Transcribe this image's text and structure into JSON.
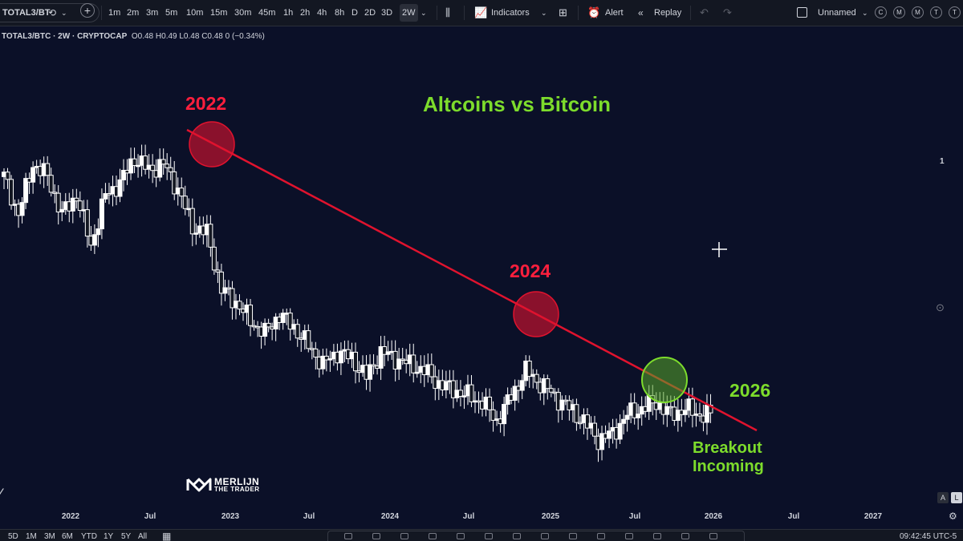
{
  "toolbar": {
    "symbol": "TOTAL3/BT",
    "intervals": [
      "1m",
      "2m",
      "3m",
      "5m",
      "10m",
      "15m",
      "30m",
      "45m",
      "1h",
      "2h",
      "4h",
      "8h",
      "D",
      "2D",
      "3D",
      "2W"
    ],
    "active_interval": "2W",
    "indicators_label": "Indicators",
    "alert_label": "Alert",
    "replay_label": "Replay",
    "layout_name": "Unnamed",
    "layout_shortcuts": [
      "C",
      "M",
      "M",
      "T",
      "T"
    ]
  },
  "legend": {
    "title": "TOTAL3/BTC · 2W · CRYPTOCAP",
    "open": "O0.48",
    "high": "H0.49",
    "low": "L0.48",
    "close": "C0.48",
    "change": "0 (−0.34%)"
  },
  "annotations": {
    "headline": "Altcoins vs Bitcoin",
    "year_2022": "2022",
    "year_2024": "2024",
    "year_2026": "2026",
    "breakout_line1": "Breakout",
    "breakout_line2": "Incoming",
    "price_scale_value": "1",
    "watermark_line1": "MERLIJN",
    "watermark_line2": "THE TRADER",
    "log_toggle": "L",
    "auto_toggle": "A"
  },
  "colors": {
    "background": "#0b1028",
    "trendline": "#e0132e",
    "resistance_circle": "#e0132e",
    "breakout_circle": "#7ddc2c",
    "headline_green": "#7ddc2c",
    "year_red": "#ff1f3d",
    "candle": "#ffffff"
  },
  "time_axis": {
    "labels": [
      "2022",
      "Jul",
      "2023",
      "Jul",
      "2024",
      "Jul",
      "2025",
      "Jul",
      "2026",
      "Jul",
      "2027"
    ]
  },
  "bottom_bar": {
    "ranges": [
      "5D",
      "1M",
      "3M",
      "6M",
      "YTD",
      "1Y",
      "5Y",
      "All"
    ],
    "clock": "09:42:45 UTC-5"
  },
  "chart_data": {
    "type": "candlestick",
    "title": "Altcoins vs Bitcoin",
    "symbol": "TOTAL3/BTC",
    "interval": "2W",
    "series": [
      {
        "name": "TOTAL3/BTC",
        "note": "approximate close path, every ~4 weeks",
        "x": [
          "2021-12",
          "2022-01",
          "2022-02",
          "2022-03",
          "2022-04",
          "2022-05",
          "2022-06",
          "2022-07",
          "2022-08",
          "2022-09",
          "2022-10",
          "2022-11",
          "2022-12",
          "2023-01",
          "2023-02",
          "2023-03",
          "2023-04",
          "2023-05",
          "2023-06",
          "2023-07",
          "2023-08",
          "2023-09",
          "2023-10",
          "2023-11",
          "2023-12",
          "2024-01",
          "2024-02",
          "2024-03",
          "2024-04",
          "2024-05",
          "2024-06",
          "2024-07",
          "2024-08",
          "2024-09",
          "2024-10",
          "2024-11",
          "2024-12",
          "2025-01",
          "2025-02",
          "2025-03",
          "2025-04",
          "2025-05",
          "2025-06",
          "2025-07",
          "2025-08",
          "2025-09",
          "2025-10",
          "2025-11",
          "2025-12",
          "2026-01"
        ],
        "y": [
          0.86,
          0.8,
          0.88,
          0.86,
          0.8,
          0.83,
          0.75,
          0.83,
          0.85,
          0.89,
          0.87,
          0.88,
          0.84,
          0.78,
          0.77,
          0.68,
          0.66,
          0.63,
          0.61,
          0.64,
          0.62,
          0.59,
          0.56,
          0.58,
          0.57,
          0.54,
          0.58,
          0.57,
          0.56,
          0.55,
          0.53,
          0.52,
          0.51,
          0.5,
          0.47,
          0.51,
          0.55,
          0.53,
          0.51,
          0.49,
          0.47,
          0.44,
          0.45,
          0.48,
          0.49,
          0.5,
          0.48,
          0.49,
          0.48,
          0.48
        ]
      }
    ],
    "trendline": {
      "from": "2022-11",
      "to": "2026-03"
    },
    "x_tick_labels": [
      "2022",
      "Jul",
      "2023",
      "Jul",
      "2024",
      "Jul",
      "2025",
      "Jul",
      "2026",
      "Jul",
      "2027"
    ]
  }
}
